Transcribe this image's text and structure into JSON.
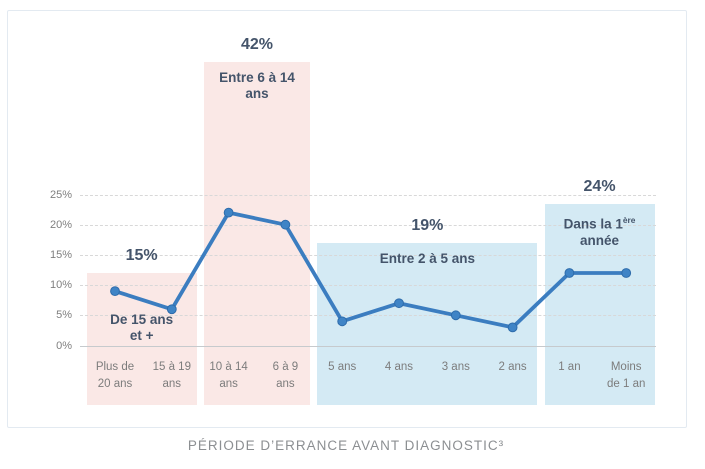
{
  "caption": "PÉRIODE D’ERRANCE AVANT DIAGNOSTIC³",
  "colors": {
    "line": "#3b7dc0",
    "marker_fill": "#3f84c6",
    "marker_stroke": "#2e6cab",
    "pink_band": "#fae8e6",
    "blue_band": "#d4eaf4",
    "band_text": "#44546a",
    "axis_text": "#7f7f7f",
    "gridline": "#d8d8d8",
    "zero_line": "#c6cacd",
    "caption_text": "#8c8f92"
  },
  "chart_data": {
    "type": "line",
    "title": "",
    "xlabel": "",
    "ylabel": "",
    "unit": "%",
    "ylim": [
      0,
      25
    ],
    "ytick_labels": [
      "0%",
      "5%",
      "10%",
      "15%",
      "20%",
      "25%"
    ],
    "grid": "horizontal-dashed",
    "legend": "none",
    "categories": [
      [
        "Plus de",
        "20 ans"
      ],
      [
        "15 à 19",
        "ans"
      ],
      [
        "10 à 14",
        "ans"
      ],
      [
        "6 à 9",
        "ans"
      ],
      [
        "5 ans"
      ],
      [
        "4 ans"
      ],
      [
        "3 ans"
      ],
      [
        "2 ans"
      ],
      [
        "1 an"
      ],
      [
        "Moins",
        "de 1 an"
      ]
    ],
    "values": [
      9,
      6,
      22,
      20,
      4,
      7,
      5,
      3,
      12,
      12
    ],
    "bands": [
      {
        "value_label": "15%",
        "sublabel_lines": [
          {
            "text": "De 15 ans"
          },
          {
            "text": "et +"
          }
        ],
        "from": 0,
        "to": 1,
        "color": "pink",
        "band_top_value": 12,
        "sublabel_pos": "bottom"
      },
      {
        "value_label": "42%",
        "sublabel_lines": [
          {
            "text": "Entre 6 à 14"
          },
          {
            "text": "ans"
          }
        ],
        "from": 2,
        "to": 3,
        "color": "pink",
        "band_top_value": 47,
        "sublabel_pos": "top"
      },
      {
        "value_label": "19%",
        "sublabel_lines": [
          {
            "text": "Entre 2 à 5 ans"
          }
        ],
        "from": 4,
        "to": 7,
        "color": "blue",
        "band_top_value": 17,
        "sublabel_pos": "top"
      },
      {
        "value_label": "24%",
        "sublabel_lines": [
          {
            "text": "Dans la 1",
            "sup": "ère"
          },
          {
            "text": "année"
          }
        ],
        "from": 8,
        "to": 9,
        "color": "blue",
        "band_top_value": 23.4,
        "sublabel_pos": "top"
      }
    ]
  }
}
